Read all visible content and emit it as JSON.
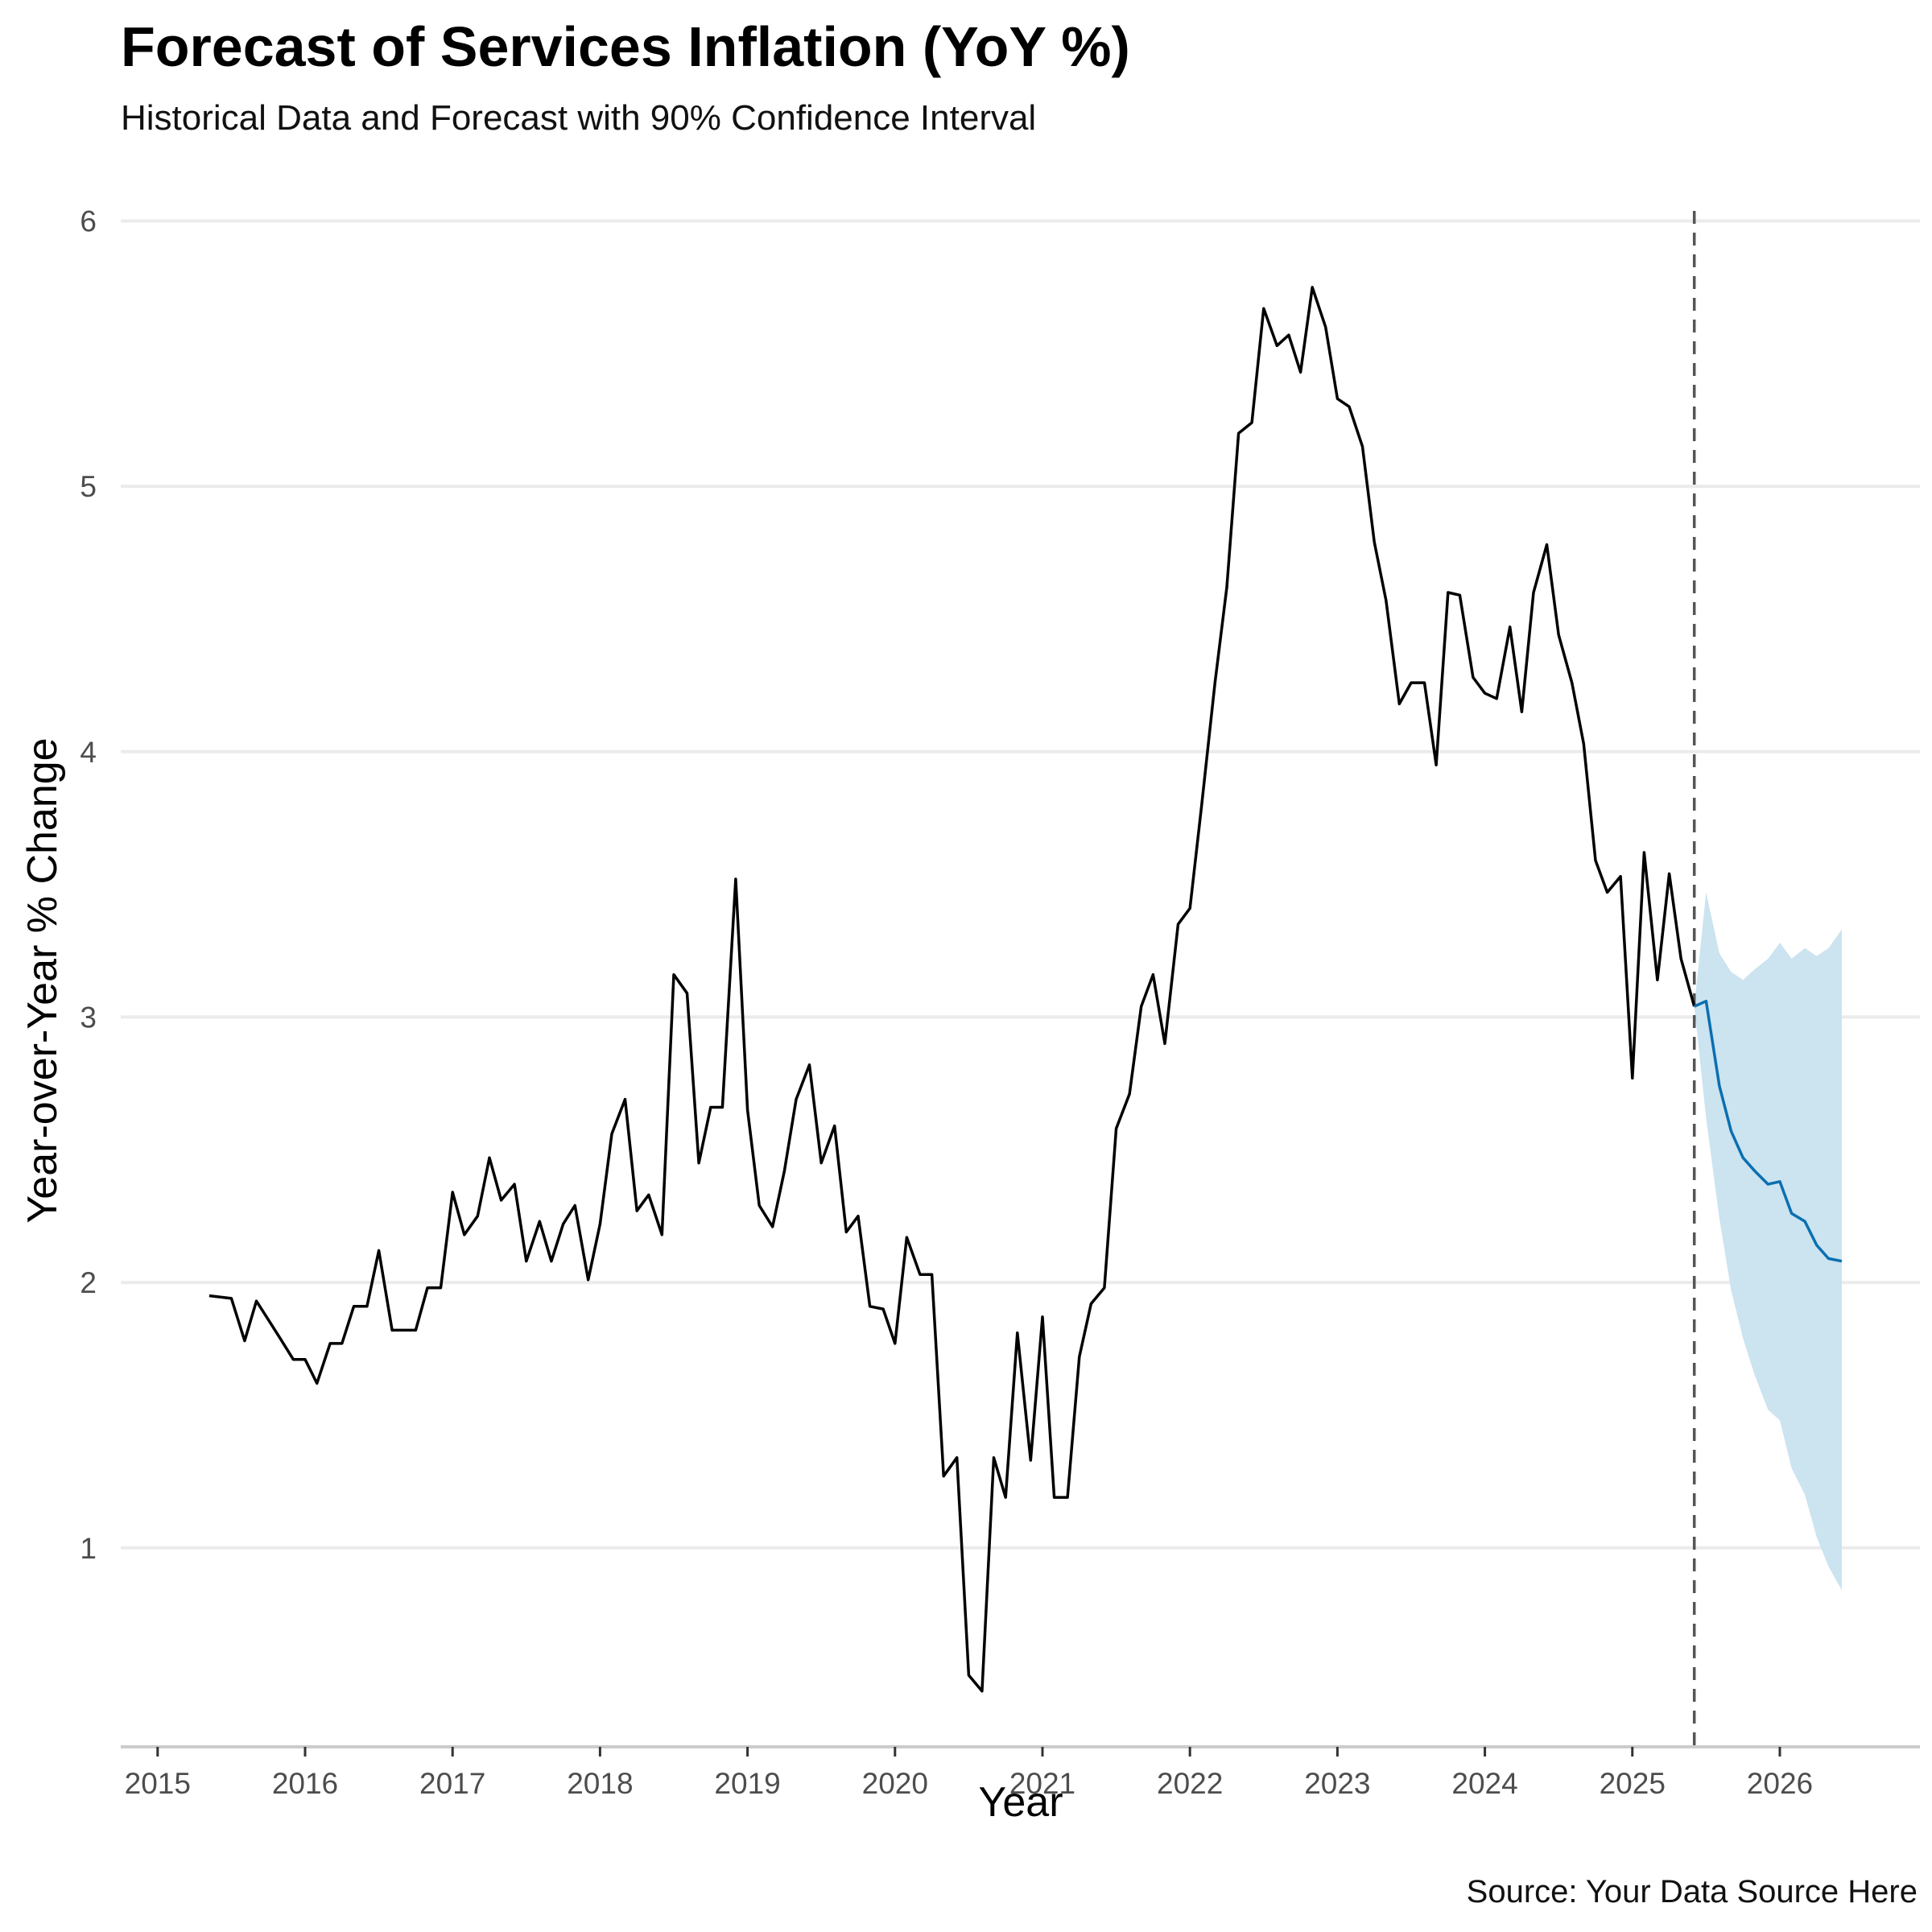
{
  "chart_data": {
    "type": "line",
    "title": "Forecast of Services Inflation (YoY %)",
    "subtitle": "Historical Data and Forecast with 90% Confidence Interval",
    "caption": "Source: Your Data Source Here",
    "xlabel": "Year",
    "ylabel": "Year-over-Year % Change",
    "xlim": [
      2014.75,
      2026.95
    ],
    "ylim": [
      0.25,
      6.15
    ],
    "x_ticks": [
      2015,
      2016,
      2017,
      2018,
      2019,
      2020,
      2021,
      2022,
      2023,
      2024,
      2025,
      2026
    ],
    "x_tick_labels": [
      "2015",
      "2016",
      "2017",
      "2018",
      "2019",
      "2020",
      "2021",
      "2022",
      "2023",
      "2024",
      "2025",
      "2026"
    ],
    "y_ticks": [
      1,
      2,
      3,
      4,
      5,
      6
    ],
    "y_tick_labels": [
      "1",
      "2",
      "3",
      "4",
      "5",
      "6"
    ],
    "grid": "horizontal major",
    "forecast_start": 2025.42,
    "colors": {
      "historical": "#000000",
      "forecast": "#0a6fb0",
      "interval": "#cce3f0",
      "vline": "#555555",
      "grid": "#ebebeb",
      "axis": "#cccccc"
    },
    "series": [
      {
        "kind": "historical",
        "x": [
          2015.35,
          2015.5,
          2015.59,
          2015.67,
          2015.75,
          2015.83,
          2015.92,
          2016.0,
          2016.08,
          2016.17,
          2016.25,
          2016.33,
          2016.42,
          2016.5,
          2016.59,
          2016.67,
          2016.75,
          2016.83,
          2016.92,
          2017.0,
          2017.08,
          2017.17,
          2017.25,
          2017.33,
          2017.42,
          2017.5,
          2017.59,
          2017.67,
          2017.75,
          2017.83,
          2017.92,
          2018.0,
          2018.08,
          2018.17,
          2018.25,
          2018.33,
          2018.42,
          2018.5,
          2018.59,
          2018.67,
          2018.75,
          2018.83,
          2018.92,
          2019.0,
          2019.08,
          2019.17,
          2019.25,
          2019.33,
          2019.42,
          2019.5,
          2019.59,
          2019.67,
          2019.75,
          2019.83,
          2019.92,
          2020.0,
          2020.08,
          2020.17,
          2020.25,
          2020.33,
          2020.42,
          2020.5,
          2020.59,
          2020.67,
          2020.75,
          2020.83,
          2020.92,
          2021.0,
          2021.08,
          2021.17,
          2021.25,
          2021.33,
          2021.42,
          2021.5,
          2021.59,
          2021.67,
          2021.75,
          2021.83,
          2021.92,
          2022.0,
          2022.08,
          2022.17,
          2022.25,
          2022.33,
          2022.42,
          2022.5,
          2022.59,
          2022.67,
          2022.75,
          2022.83,
          2022.92,
          2023.0,
          2023.08,
          2023.17,
          2023.25,
          2023.33,
          2023.42,
          2023.5,
          2023.59,
          2023.67,
          2023.75,
          2023.83,
          2023.92,
          2024.0,
          2024.08,
          2024.17,
          2024.25,
          2024.33,
          2024.42,
          2024.5,
          2024.59,
          2024.67,
          2024.75,
          2024.83,
          2024.92,
          2025.0,
          2025.08,
          2025.17,
          2025.25,
          2025.33,
          2025.42
        ],
        "y": [
          1.95,
          1.94,
          1.78,
          1.93,
          1.86,
          1.79,
          1.71,
          1.71,
          1.62,
          1.77,
          1.77,
          1.91,
          1.91,
          2.12,
          1.82,
          1.82,
          1.82,
          1.98,
          1.98,
          2.34,
          2.18,
          2.25,
          2.47,
          2.31,
          2.37,
          2.08,
          2.23,
          2.08,
          2.22,
          2.29,
          2.01,
          2.22,
          2.56,
          2.69,
          2.27,
          2.33,
          2.18,
          3.16,
          3.09,
          2.45,
          2.66,
          2.66,
          3.52,
          2.65,
          2.29,
          2.21,
          2.42,
          2.69,
          2.82,
          2.45,
          2.59,
          2.19,
          2.25,
          1.91,
          1.9,
          1.77,
          2.17,
          2.03,
          2.03,
          1.27,
          1.34,
          0.52,
          0.46,
          1.34,
          1.19,
          1.81,
          1.33,
          1.87,
          1.19,
          1.19,
          1.72,
          1.92,
          1.98,
          2.58,
          2.71,
          3.04,
          3.16,
          2.9,
          3.35,
          3.41,
          3.8,
          4.26,
          4.62,
          5.2,
          5.24,
          5.67,
          5.53,
          5.57,
          5.43,
          5.75,
          5.6,
          5.33,
          5.3,
          5.15,
          4.79,
          4.57,
          4.18,
          4.26,
          4.26,
          3.95,
          4.6,
          4.59,
          4.28,
          4.22,
          4.2,
          4.47,
          4.15,
          4.6,
          4.78,
          4.44,
          4.26,
          4.03,
          3.59,
          3.47,
          3.53,
          2.77,
          3.62,
          3.14,
          3.54,
          3.22,
          3.04
        ]
      },
      {
        "kind": "forecast",
        "x": [
          2025.42,
          2025.5,
          2025.59,
          2025.67,
          2025.75,
          2025.83,
          2025.92,
          2026.0,
          2026.08,
          2026.17,
          2026.25,
          2026.33,
          2026.42
        ],
        "y": [
          3.04,
          3.06,
          2.74,
          2.57,
          2.47,
          2.42,
          2.37,
          2.38,
          2.26,
          2.23,
          2.14,
          2.09,
          2.08
        ],
        "lower": [
          3.04,
          2.62,
          2.24,
          1.97,
          1.79,
          1.65,
          1.52,
          1.48,
          1.3,
          1.2,
          1.04,
          0.93,
          0.84
        ],
        "upper": [
          3.04,
          3.47,
          3.24,
          3.17,
          3.14,
          3.18,
          3.22,
          3.28,
          3.22,
          3.26,
          3.23,
          3.26,
          3.33
        ]
      }
    ]
  }
}
